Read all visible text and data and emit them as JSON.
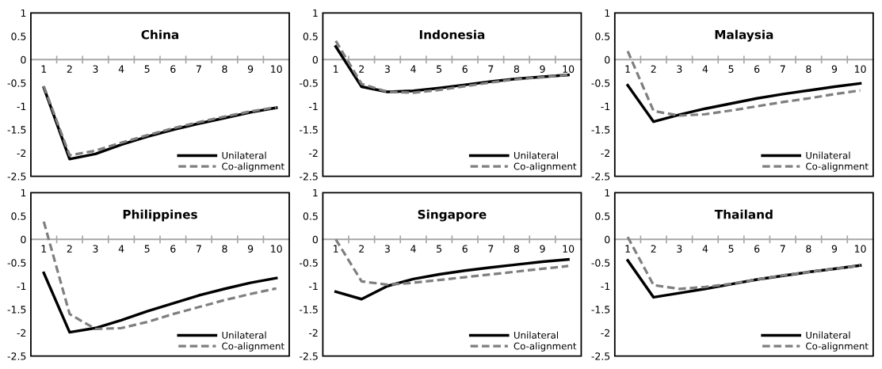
{
  "chart_data": [
    {
      "type": "line",
      "title": "China",
      "categories": [
        "1",
        "2",
        "3",
        "4",
        "5",
        "6",
        "7",
        "8",
        "9",
        "10"
      ],
      "ylim": [
        -2.5,
        1
      ],
      "yticks": [
        -2.5,
        -2,
        -1.5,
        -1,
        -0.5,
        0,
        0.5,
        1
      ],
      "grid": false,
      "legend": "bottom right",
      "series": [
        {
          "name": "Unilateral",
          "color": "#000000",
          "line_style": "solid",
          "values": [
            -0.6,
            -2.13,
            -2.02,
            -1.82,
            -1.65,
            -1.5,
            -1.37,
            -1.25,
            -1.13,
            -1.03
          ]
        },
        {
          "name": "Co-alignment",
          "color": "#7f7f7f",
          "line_style": "dashed",
          "values": [
            -0.57,
            -2.05,
            -1.95,
            -1.78,
            -1.62,
            -1.47,
            -1.34,
            -1.22,
            -1.11,
            -1.02
          ]
        }
      ]
    },
    {
      "type": "line",
      "title": "Indonesia",
      "categories": [
        "1",
        "2",
        "3",
        "4",
        "5",
        "6",
        "7",
        "8",
        "9",
        "10"
      ],
      "ylim": [
        -2.5,
        1
      ],
      "yticks": [
        -2.5,
        -2,
        -1.5,
        -1,
        -0.5,
        0,
        0.5,
        1
      ],
      "grid": false,
      "legend": "bottom right",
      "series": [
        {
          "name": "Unilateral",
          "color": "#000000",
          "line_style": "solid",
          "values": [
            0.28,
            -0.58,
            -0.69,
            -0.67,
            -0.61,
            -0.54,
            -0.47,
            -0.41,
            -0.37,
            -0.33
          ]
        },
        {
          "name": "Co-alignment",
          "color": "#7f7f7f",
          "line_style": "dashed",
          "values": [
            0.4,
            -0.52,
            -0.69,
            -0.71,
            -0.65,
            -0.57,
            -0.49,
            -0.42,
            -0.38,
            -0.32
          ]
        }
      ]
    },
    {
      "type": "line",
      "title": "Malaysia",
      "categories": [
        "1",
        "2",
        "3",
        "4",
        "5",
        "6",
        "7",
        "8",
        "9",
        "10"
      ],
      "ylim": [
        -2.5,
        1
      ],
      "yticks": [
        -2.5,
        -2,
        -1.5,
        -1,
        -0.5,
        0,
        0.5,
        1
      ],
      "grid": false,
      "legend": "bottom right",
      "series": [
        {
          "name": "Unilateral",
          "color": "#000000",
          "line_style": "solid",
          "values": [
            -0.55,
            -1.33,
            -1.18,
            -1.05,
            -0.94,
            -0.83,
            -0.74,
            -0.66,
            -0.58,
            -0.51
          ]
        },
        {
          "name": "Co-alignment",
          "color": "#7f7f7f",
          "line_style": "dashed",
          "values": [
            0.18,
            -1.1,
            -1.2,
            -1.17,
            -1.09,
            -1.0,
            -0.91,
            -0.83,
            -0.74,
            -0.66
          ]
        }
      ]
    },
    {
      "type": "line",
      "title": "Philippines",
      "categories": [
        "1",
        "2",
        "3",
        "4",
        "5",
        "6",
        "7",
        "8",
        "9",
        "10"
      ],
      "ylim": [
        -2.5,
        1
      ],
      "yticks": [
        -2.5,
        -2,
        -1.5,
        -1,
        -0.5,
        0,
        0.5,
        1
      ],
      "grid": false,
      "legend": "bottom right",
      "series": [
        {
          "name": "Unilateral",
          "color": "#000000",
          "line_style": "solid",
          "values": [
            -0.72,
            -1.99,
            -1.9,
            -1.73,
            -1.54,
            -1.37,
            -1.2,
            -1.06,
            -0.93,
            -0.83
          ]
        },
        {
          "name": "Co-alignment",
          "color": "#7f7f7f",
          "line_style": "dashed",
          "values": [
            0.38,
            -1.6,
            -1.92,
            -1.9,
            -1.77,
            -1.6,
            -1.45,
            -1.3,
            -1.17,
            -1.05
          ]
        }
      ]
    },
    {
      "type": "line",
      "title": "Singapore",
      "categories": [
        "1",
        "2",
        "3",
        "4",
        "5",
        "6",
        "7",
        "8",
        "9",
        "10"
      ],
      "ylim": [
        -2.5,
        1
      ],
      "yticks": [
        -2.5,
        -2,
        -1.5,
        -1,
        -0.5,
        0,
        0.5,
        1
      ],
      "grid": false,
      "legend": "bottom right",
      "series": [
        {
          "name": "Unilateral",
          "color": "#000000",
          "line_style": "solid",
          "values": [
            -1.12,
            -1.28,
            -1.0,
            -0.85,
            -0.75,
            -0.67,
            -0.6,
            -0.54,
            -0.48,
            -0.43
          ]
        },
        {
          "name": "Co-alignment",
          "color": "#7f7f7f",
          "line_style": "dashed",
          "values": [
            0.0,
            -0.9,
            -0.97,
            -0.93,
            -0.87,
            -0.81,
            -0.75,
            -0.69,
            -0.63,
            -0.57
          ]
        }
      ]
    },
    {
      "type": "line",
      "title": "Thailand",
      "categories": [
        "1",
        "2",
        "3",
        "4",
        "5",
        "6",
        "7",
        "8",
        "9",
        "10"
      ],
      "ylim": [
        -2.5,
        1
      ],
      "yticks": [
        -2.5,
        -2,
        -1.5,
        -1,
        -0.5,
        0,
        0.5,
        1
      ],
      "grid": false,
      "legend": "bottom right",
      "series": [
        {
          "name": "Unilateral",
          "color": "#000000",
          "line_style": "solid",
          "values": [
            -0.45,
            -1.24,
            -1.15,
            -1.06,
            -0.96,
            -0.86,
            -0.78,
            -0.7,
            -0.63,
            -0.56
          ]
        },
        {
          "name": "Co-alignment",
          "color": "#7f7f7f",
          "line_style": "dashed",
          "values": [
            0.05,
            -0.98,
            -1.06,
            -1.02,
            -0.95,
            -0.86,
            -0.77,
            -0.7,
            -0.63,
            -0.56
          ]
        }
      ]
    }
  ]
}
